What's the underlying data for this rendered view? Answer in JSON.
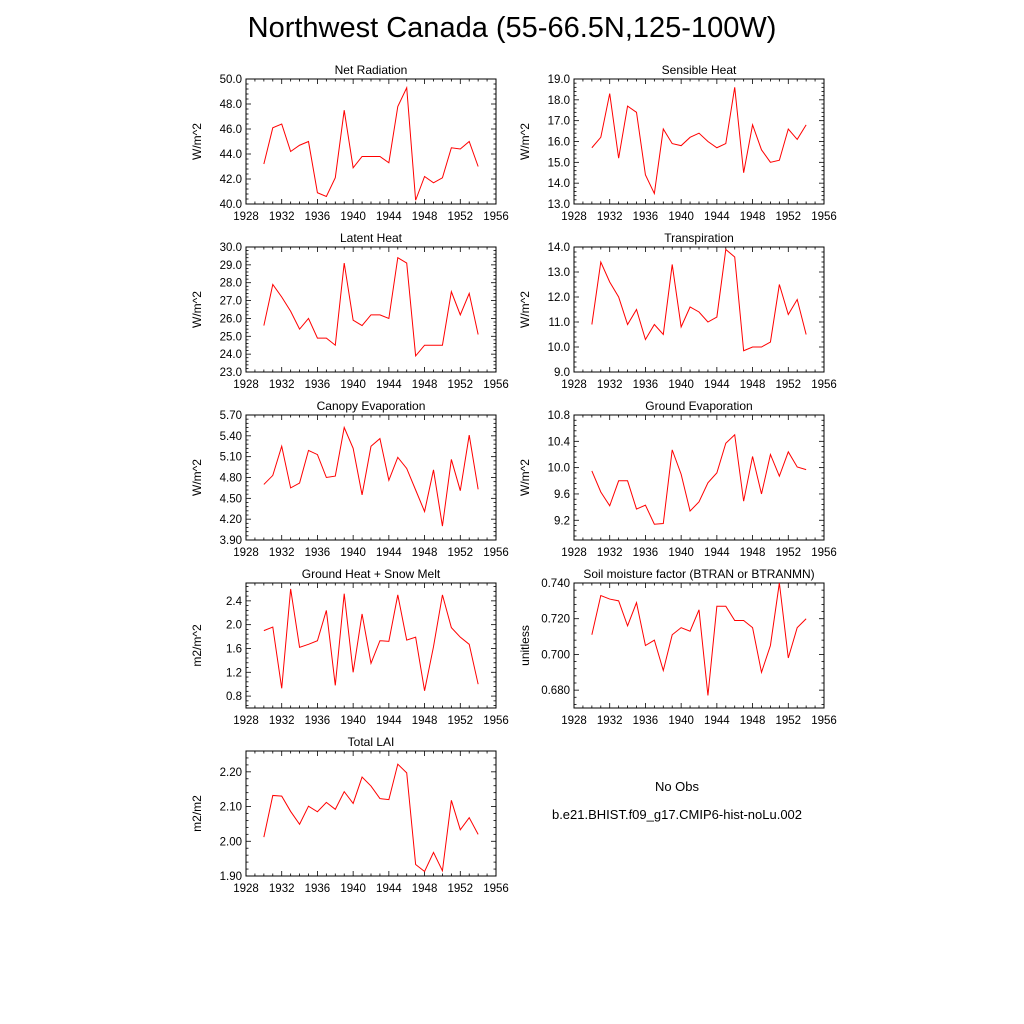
{
  "title": "Northwest Canada (55-66.5N,125-100W)",
  "colors": {
    "series": "#ff0000",
    "obs": "#3c3c8c"
  },
  "legend": {
    "items": [
      {
        "label": "No Obs",
        "style": "dashed",
        "color": "#3c3c8c"
      },
      {
        "label": "b.e21.BHIST.f09_g17.CMIP6-hist-noLu.002",
        "style": "solid",
        "color": "#ff0000"
      }
    ]
  },
  "chart_data": [
    {
      "type": "line",
      "title": "Net Radiation",
      "ylabel": "W/m^2",
      "xlim": [
        1928,
        1956
      ],
      "xticks": [
        1928,
        1932,
        1936,
        1940,
        1944,
        1948,
        1952,
        1956
      ],
      "ylim": [
        40.0,
        50.0
      ],
      "yticks": [
        40.0,
        42.0,
        44.0,
        46.0,
        48.0,
        50.0
      ],
      "ydecimals": 1,
      "x": [
        1930,
        1931,
        1932,
        1933,
        1934,
        1935,
        1936,
        1937,
        1938,
        1939,
        1940,
        1941,
        1942,
        1943,
        1944,
        1945,
        1946,
        1947,
        1948,
        1949,
        1950,
        1951,
        1952,
        1953,
        1954
      ],
      "series": [
        {
          "name": "b.e21.BHIST.f09_g17.CMIP6-hist-noLu.002",
          "values": [
            43.2,
            46.1,
            46.4,
            44.2,
            44.7,
            45.0,
            40.9,
            40.6,
            42.1,
            47.5,
            42.9,
            43.8,
            43.8,
            43.8,
            43.3,
            47.8,
            49.3,
            40.3,
            42.2,
            41.7,
            42.1,
            44.5,
            44.4,
            45.0,
            43.0
          ]
        }
      ]
    },
    {
      "type": "line",
      "title": "Sensible Heat",
      "ylabel": "W/m^2",
      "xlim": [
        1928,
        1956
      ],
      "xticks": [
        1928,
        1932,
        1936,
        1940,
        1944,
        1948,
        1952,
        1956
      ],
      "ylim": [
        13.0,
        19.0
      ],
      "yticks": [
        13.0,
        14.0,
        15.0,
        16.0,
        17.0,
        18.0,
        19.0
      ],
      "ydecimals": 1,
      "x": [
        1930,
        1931,
        1932,
        1933,
        1934,
        1935,
        1936,
        1937,
        1938,
        1939,
        1940,
        1941,
        1942,
        1943,
        1944,
        1945,
        1946,
        1947,
        1948,
        1949,
        1950,
        1951,
        1952,
        1953,
        1954
      ],
      "series": [
        {
          "name": "b.e21.BHIST.f09_g17.CMIP6-hist-noLu.002",
          "values": [
            15.7,
            16.2,
            18.3,
            15.2,
            17.7,
            17.4,
            14.4,
            13.5,
            16.6,
            15.9,
            15.8,
            16.2,
            16.4,
            16.0,
            15.7,
            15.9,
            18.6,
            14.5,
            16.8,
            15.6,
            15.0,
            15.1,
            16.6,
            16.1,
            16.8
          ]
        }
      ]
    },
    {
      "type": "line",
      "title": "Latent Heat",
      "ylabel": "W/m^2",
      "xlim": [
        1928,
        1956
      ],
      "xticks": [
        1928,
        1932,
        1936,
        1940,
        1944,
        1948,
        1952,
        1956
      ],
      "ylim": [
        23.0,
        30.0
      ],
      "yticks": [
        23.0,
        24.0,
        25.0,
        26.0,
        27.0,
        28.0,
        29.0,
        30.0
      ],
      "ydecimals": 1,
      "x": [
        1930,
        1931,
        1932,
        1933,
        1934,
        1935,
        1936,
        1937,
        1938,
        1939,
        1940,
        1941,
        1942,
        1943,
        1944,
        1945,
        1946,
        1947,
        1948,
        1949,
        1950,
        1951,
        1952,
        1953,
        1954
      ],
      "series": [
        {
          "name": "b.e21.BHIST.f09_g17.CMIP6-hist-noLu.002",
          "values": [
            25.6,
            27.9,
            27.2,
            26.4,
            25.4,
            26.0,
            24.9,
            24.9,
            24.5,
            29.1,
            25.9,
            25.6,
            26.2,
            26.2,
            26.0,
            29.4,
            29.1,
            23.9,
            24.5,
            24.5,
            24.5,
            27.5,
            26.2,
            27.4,
            25.1
          ]
        }
      ]
    },
    {
      "type": "line",
      "title": "Transpiration",
      "ylabel": "W/m^2",
      "xlim": [
        1928,
        1956
      ],
      "xticks": [
        1928,
        1932,
        1936,
        1940,
        1944,
        1948,
        1952,
        1956
      ],
      "ylim": [
        9.0,
        14.0
      ],
      "yticks": [
        9.0,
        10.0,
        11.0,
        12.0,
        13.0,
        14.0
      ],
      "ydecimals": 1,
      "x": [
        1930,
        1931,
        1932,
        1933,
        1934,
        1935,
        1936,
        1937,
        1938,
        1939,
        1940,
        1941,
        1942,
        1943,
        1944,
        1945,
        1946,
        1947,
        1948,
        1949,
        1950,
        1951,
        1952,
        1953,
        1954
      ],
      "series": [
        {
          "name": "b.e21.BHIST.f09_g17.CMIP6-hist-noLu.002",
          "values": [
            10.9,
            13.4,
            12.6,
            12.0,
            10.9,
            11.5,
            10.3,
            10.9,
            10.5,
            13.3,
            10.8,
            11.6,
            11.4,
            11.0,
            11.2,
            13.9,
            13.6,
            9.85,
            10.0,
            10.0,
            10.2,
            12.5,
            11.3,
            11.9,
            10.5
          ]
        }
      ]
    },
    {
      "type": "line",
      "title": "Canopy Evaporation",
      "ylabel": "W/m^2",
      "xlim": [
        1928,
        1956
      ],
      "xticks": [
        1928,
        1932,
        1936,
        1940,
        1944,
        1948,
        1952,
        1956
      ],
      "ylim": [
        3.9,
        5.7
      ],
      "yticks": [
        3.9,
        4.2,
        4.5,
        4.8,
        5.1,
        5.4,
        5.7
      ],
      "ydecimals": 2,
      "x": [
        1930,
        1931,
        1932,
        1933,
        1934,
        1935,
        1936,
        1937,
        1938,
        1939,
        1940,
        1941,
        1942,
        1943,
        1944,
        1945,
        1946,
        1947,
        1948,
        1949,
        1950,
        1951,
        1952,
        1953,
        1954
      ],
      "series": [
        {
          "name": "b.e21.BHIST.f09_g17.CMIP6-hist-noLu.002",
          "values": [
            4.7,
            4.83,
            5.25,
            4.65,
            4.72,
            5.19,
            5.13,
            4.8,
            4.82,
            5.52,
            5.22,
            4.55,
            5.25,
            5.36,
            4.76,
            5.09,
            4.93,
            4.62,
            4.31,
            4.91,
            4.1,
            5.06,
            4.61,
            5.41,
            4.63
          ]
        }
      ]
    },
    {
      "type": "line",
      "title": "Ground Evaporation",
      "ylabel": "W/m^2",
      "xlim": [
        1928,
        1956
      ],
      "xticks": [
        1928,
        1932,
        1936,
        1940,
        1944,
        1948,
        1952,
        1956
      ],
      "ylim": [
        8.9,
        10.8
      ],
      "yticks": [
        9.2,
        9.6,
        10.0,
        10.4,
        10.8
      ],
      "ydecimals": 1,
      "x": [
        1930,
        1931,
        1932,
        1933,
        1934,
        1935,
        1936,
        1937,
        1938,
        1939,
        1940,
        1941,
        1942,
        1943,
        1944,
        1945,
        1946,
        1947,
        1948,
        1949,
        1950,
        1951,
        1952,
        1953,
        1954
      ],
      "series": [
        {
          "name": "b.e21.BHIST.f09_g17.CMIP6-hist-noLu.002",
          "values": [
            9.95,
            9.63,
            9.42,
            9.8,
            9.8,
            9.37,
            9.43,
            9.14,
            9.15,
            10.27,
            9.9,
            9.34,
            9.48,
            9.77,
            9.92,
            10.37,
            10.5,
            9.49,
            10.17,
            9.6,
            10.2,
            9.87,
            10.24,
            10.01,
            9.97
          ]
        }
      ]
    },
    {
      "type": "line",
      "title": "Ground Heat + Snow Melt",
      "ylabel": "m2/m^2",
      "xlim": [
        1928,
        1956
      ],
      "xticks": [
        1928,
        1932,
        1936,
        1940,
        1944,
        1948,
        1952,
        1956
      ],
      "ylim": [
        0.6,
        2.7
      ],
      "yticks": [
        0.8,
        1.2,
        1.6,
        2.0,
        2.4
      ],
      "ydecimals": 1,
      "x": [
        1930,
        1931,
        1932,
        1933,
        1934,
        1935,
        1936,
        1937,
        1938,
        1939,
        1940,
        1941,
        1942,
        1943,
        1944,
        1945,
        1946,
        1947,
        1948,
        1949,
        1950,
        1951,
        1952,
        1953,
        1954
      ],
      "series": [
        {
          "name": "b.e21.BHIST.f09_g17.CMIP6-hist-noLu.002",
          "values": [
            1.9,
            1.96,
            0.93,
            2.6,
            1.62,
            1.67,
            1.73,
            2.24,
            0.98,
            2.52,
            1.2,
            2.18,
            1.35,
            1.73,
            1.72,
            2.5,
            1.74,
            1.79,
            0.89,
            1.63,
            2.5,
            1.95,
            1.79,
            1.67,
            1.0
          ]
        }
      ]
    },
    {
      "type": "line",
      "title": "Soil moisture factor (BTRAN or BTRANMN)",
      "ylabel": "unitless",
      "xlim": [
        1928,
        1956
      ],
      "xticks": [
        1928,
        1932,
        1936,
        1940,
        1944,
        1948,
        1952,
        1956
      ],
      "ylim": [
        0.67,
        0.74
      ],
      "yticks": [
        0.68,
        0.7,
        0.72,
        0.74
      ],
      "ydecimals": 3,
      "x": [
        1930,
        1931,
        1932,
        1933,
        1934,
        1935,
        1936,
        1937,
        1938,
        1939,
        1940,
        1941,
        1942,
        1943,
        1944,
        1945,
        1946,
        1947,
        1948,
        1949,
        1950,
        1951,
        1952,
        1953,
        1954
      ],
      "series": [
        {
          "name": "b.e21.BHIST.f09_g17.CMIP6-hist-noLu.002",
          "values": [
            0.711,
            0.733,
            0.731,
            0.73,
            0.716,
            0.729,
            0.705,
            0.708,
            0.691,
            0.711,
            0.715,
            0.713,
            0.725,
            0.677,
            0.727,
            0.727,
            0.719,
            0.719,
            0.715,
            0.69,
            0.705,
            0.74,
            0.698,
            0.715,
            0.72
          ]
        }
      ]
    },
    {
      "type": "line",
      "title": "Total LAI",
      "ylabel": "m2/m2",
      "xlim": [
        1928,
        1956
      ],
      "xticks": [
        1928,
        1932,
        1936,
        1940,
        1944,
        1948,
        1952,
        1956
      ],
      "ylim": [
        1.9,
        2.26
      ],
      "yticks": [
        1.9,
        2.0,
        2.1,
        2.2
      ],
      "ydecimals": 2,
      "x": [
        1930,
        1931,
        1932,
        1933,
        1934,
        1935,
        1936,
        1937,
        1938,
        1939,
        1940,
        1941,
        1942,
        1943,
        1944,
        1945,
        1946,
        1947,
        1948,
        1949,
        1950,
        1951,
        1952,
        1953,
        1954
      ],
      "series": [
        {
          "name": "b.e21.BHIST.f09_g17.CMIP6-hist-noLu.002",
          "values": [
            2.012,
            2.132,
            2.13,
            2.086,
            2.049,
            2.101,
            2.085,
            2.112,
            2.092,
            2.143,
            2.109,
            2.185,
            2.159,
            2.123,
            2.12,
            2.222,
            2.197,
            1.933,
            1.913,
            1.968,
            1.915,
            2.118,
            2.033,
            2.068,
            2.02
          ]
        }
      ]
    }
  ]
}
